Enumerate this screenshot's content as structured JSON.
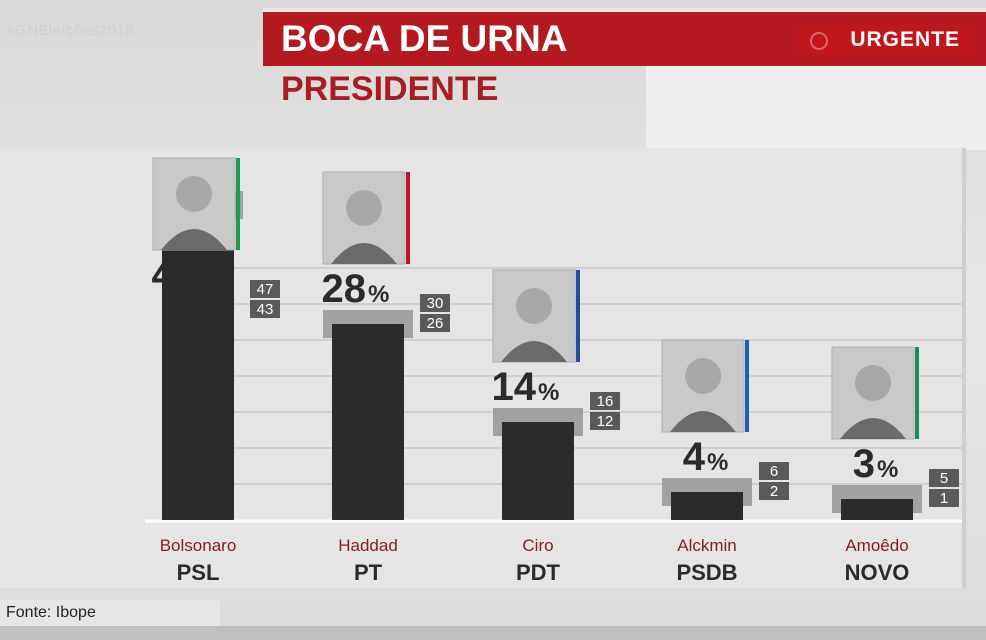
{
  "watermark": "#GNEleições2018",
  "header": {
    "title": "BOCA DE URNA",
    "subtitle": "PRESIDENTE",
    "badge": "URGENTE",
    "colors": {
      "red": "#b3191f"
    }
  },
  "source": "Fonte: Ibope",
  "chart_data": {
    "type": "bar",
    "title": "BOCA DE URNA",
    "subtitle": "PRESIDENTE",
    "categories": [
      "Bolsonaro",
      "Haddad",
      "Ciro",
      "Alckmin",
      "Amoêdo"
    ],
    "parties": [
      "PSL",
      "PT",
      "PDT",
      "PSDB",
      "NOVO"
    ],
    "values": [
      45,
      28,
      14,
      4,
      3
    ],
    "value_suffix": "%",
    "upper": [
      47,
      30,
      16,
      6,
      5
    ],
    "lower": [
      43,
      26,
      12,
      2,
      1
    ],
    "party_colors": [
      "#1e9a4a",
      "#c8102e",
      "#1f4e9c",
      "#1f5fb0",
      "#1e8a5a"
    ],
    "ylim": [
      0,
      50
    ],
    "grid": true,
    "xlabel": "",
    "ylabel": ""
  }
}
